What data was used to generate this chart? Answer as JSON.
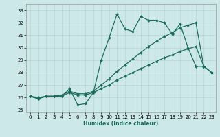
{
  "xlabel": "Humidex (Indice chaleur)",
  "background_color": "#cce8e8",
  "grid_color": "#b8d4d4",
  "line_color": "#1a6b5a",
  "xlim": [
    -0.5,
    23.5
  ],
  "ylim": [
    24.8,
    33.5
  ],
  "yticks": [
    25,
    26,
    27,
    28,
    29,
    30,
    31,
    32,
    33
  ],
  "xticks": [
    0,
    1,
    2,
    3,
    4,
    5,
    6,
    7,
    8,
    9,
    10,
    11,
    12,
    13,
    14,
    15,
    16,
    17,
    18,
    19,
    20,
    21,
    22,
    23
  ],
  "series1_x": [
    0,
    1,
    2,
    3,
    4,
    5,
    6,
    7,
    8,
    9,
    10,
    11,
    12,
    13,
    14,
    15,
    16,
    17,
    18,
    19,
    20,
    21,
    22,
    23
  ],
  "series1_y": [
    26.1,
    25.9,
    26.1,
    26.1,
    26.1,
    26.7,
    25.4,
    25.5,
    26.4,
    29.0,
    30.8,
    32.7,
    31.5,
    31.3,
    32.5,
    32.2,
    32.2,
    32.0,
    31.1,
    31.9,
    30.0,
    28.5,
    28.5,
    28.0
  ],
  "series2_x": [
    0,
    1,
    2,
    3,
    4,
    5,
    6,
    7,
    8,
    9,
    10,
    11,
    12,
    13,
    14,
    15,
    16,
    17,
    18,
    19,
    20,
    21,
    22,
    23
  ],
  "series2_y": [
    26.1,
    26.0,
    26.1,
    26.1,
    26.2,
    26.5,
    26.3,
    26.3,
    26.5,
    27.0,
    27.5,
    28.1,
    28.6,
    29.1,
    29.6,
    30.1,
    30.5,
    30.9,
    31.2,
    31.6,
    31.8,
    32.0,
    28.5,
    28.0
  ],
  "series3_x": [
    0,
    1,
    2,
    3,
    4,
    5,
    6,
    7,
    8,
    9,
    10,
    11,
    12,
    13,
    14,
    15,
    16,
    17,
    18,
    19,
    20,
    21,
    22,
    23
  ],
  "series3_y": [
    26.1,
    25.9,
    26.1,
    26.1,
    26.1,
    26.4,
    26.2,
    26.2,
    26.4,
    26.7,
    27.0,
    27.4,
    27.7,
    28.0,
    28.3,
    28.6,
    28.9,
    29.2,
    29.4,
    29.7,
    29.9,
    30.1,
    28.5,
    28.0
  ]
}
